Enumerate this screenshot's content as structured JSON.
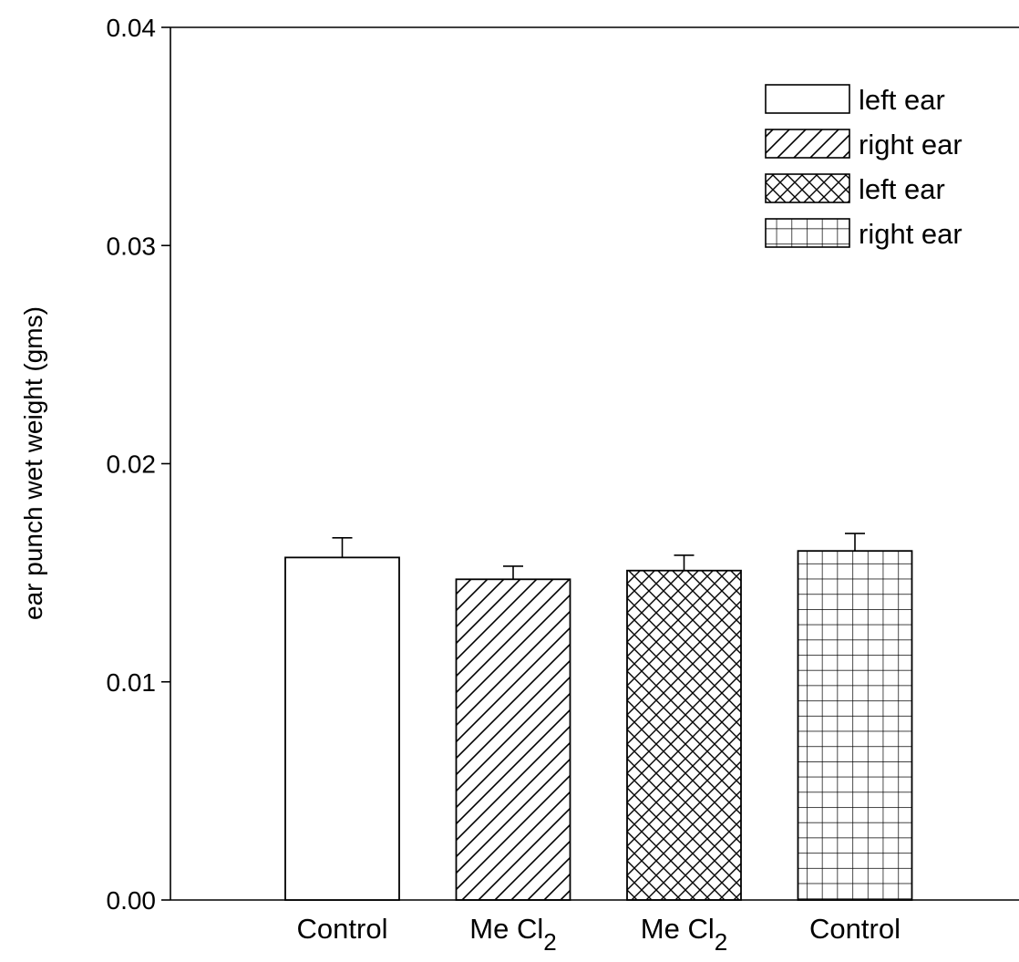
{
  "chart_data": {
    "type": "bar",
    "title": "",
    "xlabel": "",
    "ylabel": "ear punch wet weight (gms)",
    "ylim": [
      0,
      0.04
    ],
    "yticks": [
      0.0,
      0.01,
      0.02,
      0.03,
      0.04
    ],
    "ytick_labels": [
      "0.00",
      "0.01",
      "0.02",
      "0.03",
      "0.04"
    ],
    "grid": false,
    "legend_position": "top-right",
    "categories": [
      {
        "main": "Control",
        "sub": ""
      },
      {
        "main": "Me Cl",
        "sub": "2"
      },
      {
        "main": "Me Cl",
        "sub": "2"
      },
      {
        "main": "Control",
        "sub": ""
      }
    ],
    "bars": [
      {
        "value": 0.0157,
        "error": 0.0009,
        "pattern": "none"
      },
      {
        "value": 0.0147,
        "error": 0.0006,
        "pattern": "diagonal"
      },
      {
        "value": 0.0151,
        "error": 0.0007,
        "pattern": "crosshatch"
      },
      {
        "value": 0.016,
        "error": 0.0008,
        "pattern": "grid"
      }
    ],
    "legend": [
      {
        "label": "left ear",
        "pattern": "none"
      },
      {
        "label": "right ear",
        "pattern": "diagonal"
      },
      {
        "label": "left ear",
        "pattern": "crosshatch"
      },
      {
        "label": "right ear",
        "pattern": "grid"
      }
    ]
  }
}
